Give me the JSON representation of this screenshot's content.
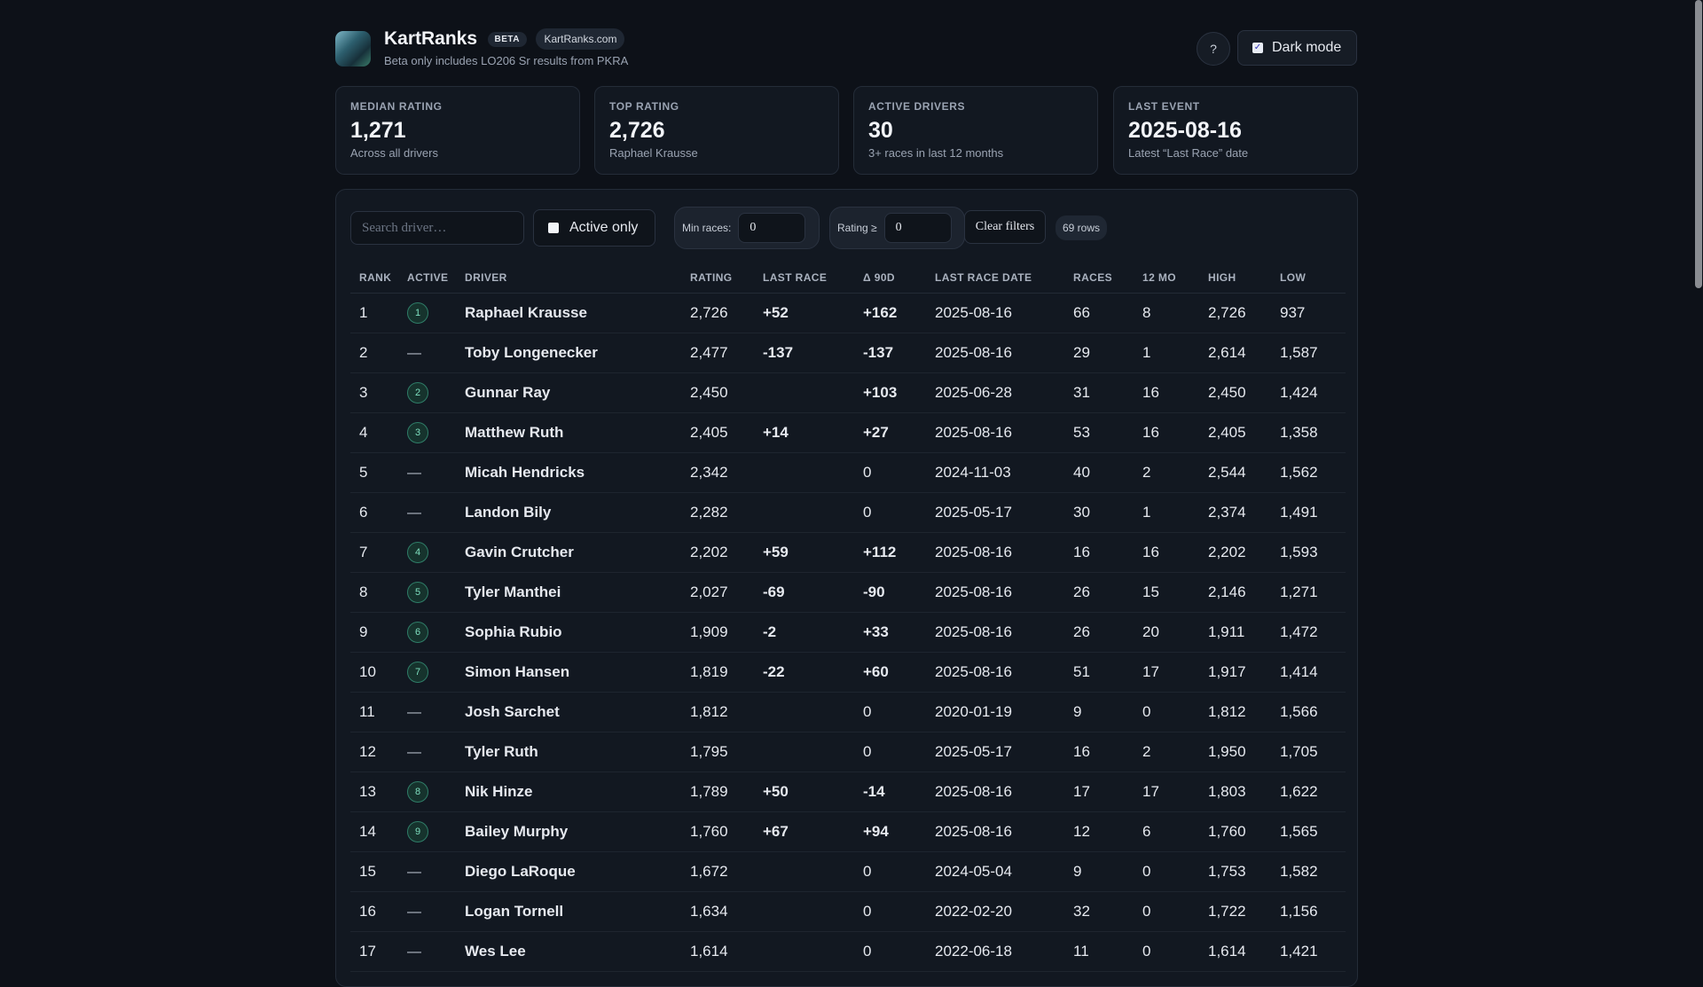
{
  "header": {
    "title": "KartRanks",
    "beta_badge": "BETA",
    "site_badge": "KartRanks.com",
    "subtitle": "Beta only includes LO206 Sr results from PKRA",
    "help_label": "?",
    "dark_mode_label": "Dark mode",
    "dark_mode_checked": true
  },
  "stats": [
    {
      "label": "MEDIAN RATING",
      "value": "1,271",
      "sub": "Across all drivers"
    },
    {
      "label": "TOP RATING",
      "value": "2,726",
      "sub": "Raphael Krausse"
    },
    {
      "label": "ACTIVE DRIVERS",
      "value": "30",
      "sub": "3+ races in last 12 months"
    },
    {
      "label": "LAST EVENT",
      "value": "2025-08-16",
      "sub": "Latest “Last Race” date"
    }
  ],
  "filters": {
    "search_placeholder": "Search driver…",
    "active_only_label": "Active only",
    "active_only_checked": false,
    "min_races_label": "Min races:",
    "min_races_value": "0",
    "rating_label": "Rating ≥",
    "rating_value": "0",
    "clear_label": "Clear filters",
    "rows_count": "69 rows"
  },
  "table": {
    "columns": [
      "RANK",
      "ACTIVE",
      "DRIVER",
      "RATING",
      "LAST RACE",
      "Δ 90D",
      "LAST RACE DATE",
      "RACES",
      "12 MO",
      "HIGH",
      "LOW"
    ],
    "rows": [
      {
        "rank": "1",
        "active": "1",
        "driver": "Raphael Krausse",
        "rating": "2,726",
        "last": "+52",
        "d90": "+162",
        "date": "2025-08-16",
        "races": "66",
        "mo": "8",
        "high": "2,726",
        "low": "937"
      },
      {
        "rank": "2",
        "active": "—",
        "driver": "Toby Longenecker",
        "rating": "2,477",
        "last": "-137",
        "d90": "-137",
        "date": "2025-08-16",
        "races": "29",
        "mo": "1",
        "high": "2,614",
        "low": "1,587"
      },
      {
        "rank": "3",
        "active": "2",
        "driver": "Gunnar Ray",
        "rating": "2,450",
        "last": "",
        "d90": "+103",
        "date": "2025-06-28",
        "races": "31",
        "mo": "16",
        "high": "2,450",
        "low": "1,424"
      },
      {
        "rank": "4",
        "active": "3",
        "driver": "Matthew Ruth",
        "rating": "2,405",
        "last": "+14",
        "d90": "+27",
        "date": "2025-08-16",
        "races": "53",
        "mo": "16",
        "high": "2,405",
        "low": "1,358"
      },
      {
        "rank": "5",
        "active": "—",
        "driver": "Micah Hendricks",
        "rating": "2,342",
        "last": "",
        "d90": "0",
        "date": "2024-11-03",
        "races": "40",
        "mo": "2",
        "high": "2,544",
        "low": "1,562"
      },
      {
        "rank": "6",
        "active": "—",
        "driver": "Landon Bily",
        "rating": "2,282",
        "last": "",
        "d90": "0",
        "date": "2025-05-17",
        "races": "30",
        "mo": "1",
        "high": "2,374",
        "low": "1,491"
      },
      {
        "rank": "7",
        "active": "4",
        "driver": "Gavin Crutcher",
        "rating": "2,202",
        "last": "+59",
        "d90": "+112",
        "date": "2025-08-16",
        "races": "16",
        "mo": "16",
        "high": "2,202",
        "low": "1,593"
      },
      {
        "rank": "8",
        "active": "5",
        "driver": "Tyler Manthei",
        "rating": "2,027",
        "last": "-69",
        "d90": "-90",
        "date": "2025-08-16",
        "races": "26",
        "mo": "15",
        "high": "2,146",
        "low": "1,271"
      },
      {
        "rank": "9",
        "active": "6",
        "driver": "Sophia Rubio",
        "rating": "1,909",
        "last": "-2",
        "d90": "+33",
        "date": "2025-08-16",
        "races": "26",
        "mo": "20",
        "high": "1,911",
        "low": "1,472"
      },
      {
        "rank": "10",
        "active": "7",
        "driver": "Simon Hansen",
        "rating": "1,819",
        "last": "-22",
        "d90": "+60",
        "date": "2025-08-16",
        "races": "51",
        "mo": "17",
        "high": "1,917",
        "low": "1,414"
      },
      {
        "rank": "11",
        "active": "—",
        "driver": "Josh Sarchet",
        "rating": "1,812",
        "last": "",
        "d90": "0",
        "date": "2020-01-19",
        "races": "9",
        "mo": "0",
        "high": "1,812",
        "low": "1,566"
      },
      {
        "rank": "12",
        "active": "—",
        "driver": "Tyler Ruth",
        "rating": "1,795",
        "last": "",
        "d90": "0",
        "date": "2025-05-17",
        "races": "16",
        "mo": "2",
        "high": "1,950",
        "low": "1,705"
      },
      {
        "rank": "13",
        "active": "8",
        "driver": "Nik Hinze",
        "rating": "1,789",
        "last": "+50",
        "d90": "-14",
        "date": "2025-08-16",
        "races": "17",
        "mo": "17",
        "high": "1,803",
        "low": "1,622"
      },
      {
        "rank": "14",
        "active": "9",
        "driver": "Bailey Murphy",
        "rating": "1,760",
        "last": "+67",
        "d90": "+94",
        "date": "2025-08-16",
        "races": "12",
        "mo": "6",
        "high": "1,760",
        "low": "1,565"
      },
      {
        "rank": "15",
        "active": "—",
        "driver": "Diego LaRoque",
        "rating": "1,672",
        "last": "",
        "d90": "0",
        "date": "2024-05-04",
        "races": "9",
        "mo": "0",
        "high": "1,753",
        "low": "1,582"
      },
      {
        "rank": "16",
        "active": "—",
        "driver": "Logan Tornell",
        "rating": "1,634",
        "last": "",
        "d90": "0",
        "date": "2022-02-20",
        "races": "32",
        "mo": "0",
        "high": "1,722",
        "low": "1,156"
      },
      {
        "rank": "17",
        "active": "—",
        "driver": "Wes Lee",
        "rating": "1,614",
        "last": "",
        "d90": "0",
        "date": "2022-06-18",
        "races": "11",
        "mo": "0",
        "high": "1,614",
        "low": "1,421"
      }
    ]
  },
  "colors": {
    "background": "#0d1118",
    "positive": "#3fc99e",
    "negative": "#f06c6c",
    "badge_border": "#2f7d68"
  },
  "icons": {
    "help": "question-icon",
    "checkbox": "checkmark-icon"
  }
}
